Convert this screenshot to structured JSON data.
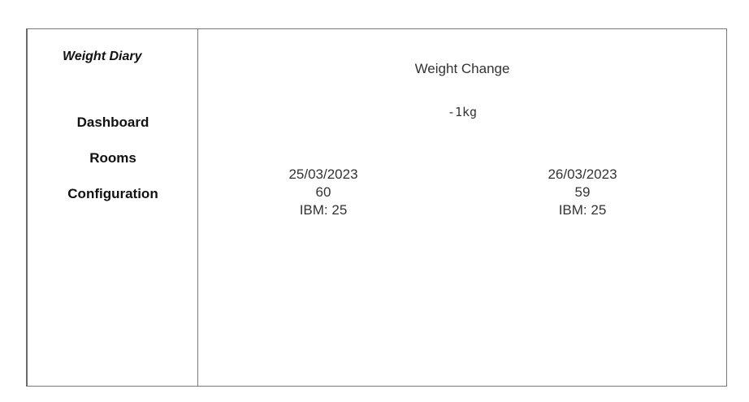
{
  "sidebar": {
    "app_title": "Weight Diary",
    "nav": [
      "Dashboard",
      "Rooms",
      "Configuration"
    ]
  },
  "main": {
    "change_label": "Weight Change",
    "change_value": "-1kg",
    "entries": [
      {
        "date": "25/03/2023",
        "weight": "60",
        "ibm": "IBM: 25"
      },
      {
        "date": "26/03/2023",
        "weight": "59",
        "ibm": "IBM: 25"
      }
    ]
  }
}
